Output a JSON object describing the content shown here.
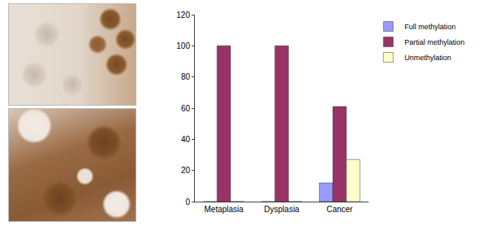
{
  "chart_data": {
    "type": "bar",
    "categories": [
      "Metaplasia",
      "Dysplasia",
      "Cancer"
    ],
    "series": [
      {
        "name": "Full methylation",
        "color": "#9999ff",
        "values": [
          0,
          0,
          12
        ]
      },
      {
        "name": "Partial methylation",
        "color": "#993366",
        "values": [
          100,
          100,
          61
        ]
      },
      {
        "name": "Unmethylation",
        "color": "#ffffcc",
        "values": [
          0,
          0,
          27
        ]
      }
    ],
    "ylim": [
      0,
      120
    ],
    "yticks": [
      0,
      20,
      40,
      60,
      80,
      100,
      120
    ],
    "grid": false,
    "legend": "upper right"
  }
}
